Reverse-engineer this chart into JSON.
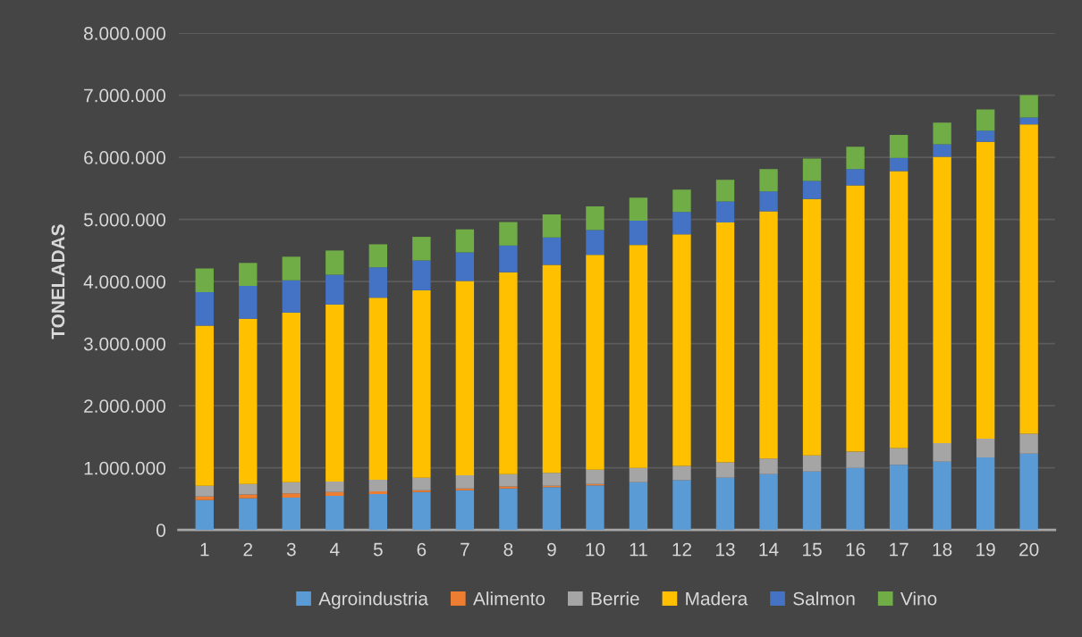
{
  "chart_data": {
    "type": "bar",
    "stacked": true,
    "ylabel": "TONELADAS",
    "categories": [
      "1",
      "2",
      "3",
      "4",
      "5",
      "6",
      "7",
      "8",
      "9",
      "10",
      "11",
      "12",
      "13",
      "14",
      "15",
      "16",
      "17",
      "18",
      "19",
      "20"
    ],
    "series": [
      {
        "name": "Agroindustria",
        "color": "#5b9bd5",
        "values": [
          480000,
          510000,
          520000,
          550000,
          580000,
          610000,
          640000,
          670000,
          690000,
          720000,
          770000,
          800000,
          840000,
          900000,
          940000,
          1000000,
          1050000,
          1100000,
          1170000,
          1230000
        ]
      },
      {
        "name": "Alimento",
        "color": "#ed7d31",
        "values": [
          60000,
          60000,
          70000,
          60000,
          40000,
          30000,
          30000,
          30000,
          20000,
          20000,
          0,
          0,
          0,
          0,
          0,
          0,
          0,
          0,
          0,
          0
        ]
      },
      {
        "name": "Berrie",
        "color": "#a5a5a5",
        "values": [
          170000,
          170000,
          180000,
          170000,
          190000,
          200000,
          210000,
          200000,
          210000,
          230000,
          230000,
          230000,
          250000,
          250000,
          260000,
          260000,
          270000,
          300000,
          300000,
          320000
        ]
      },
      {
        "name": "Madera",
        "color": "#ffc000",
        "values": [
          2580000,
          2660000,
          2730000,
          2850000,
          2930000,
          3020000,
          3130000,
          3250000,
          3350000,
          3460000,
          3590000,
          3730000,
          3860000,
          3980000,
          4130000,
          4290000,
          4460000,
          4610000,
          4780000,
          4980000
        ]
      },
      {
        "name": "Salmon",
        "color": "#4472c4",
        "values": [
          540000,
          530000,
          520000,
          480000,
          490000,
          480000,
          460000,
          430000,
          440000,
          400000,
          390000,
          360000,
          340000,
          320000,
          290000,
          260000,
          210000,
          200000,
          180000,
          110000
        ]
      },
      {
        "name": "Vino",
        "color": "#70ad47",
        "values": [
          380000,
          370000,
          380000,
          390000,
          370000,
          380000,
          370000,
          380000,
          370000,
          380000,
          370000,
          360000,
          350000,
          360000,
          360000,
          360000,
          370000,
          350000,
          340000,
          360000
        ]
      }
    ],
    "ylim": [
      0,
      8000000
    ],
    "yticks": [
      {
        "value": 0,
        "label": "0"
      },
      {
        "value": 1000000,
        "label": "1.000.000"
      },
      {
        "value": 2000000,
        "label": "2.000.000"
      },
      {
        "value": 3000000,
        "label": "3.000.000"
      },
      {
        "value": 4000000,
        "label": "4.000.000"
      },
      {
        "value": 5000000,
        "label": "5.000.000"
      },
      {
        "value": 6000000,
        "label": "6.000.000"
      },
      {
        "value": 7000000,
        "label": "7.000.000"
      },
      {
        "value": 8000000,
        "label": "8.000.000"
      }
    ],
    "grid": "y",
    "legend": "bottom"
  }
}
